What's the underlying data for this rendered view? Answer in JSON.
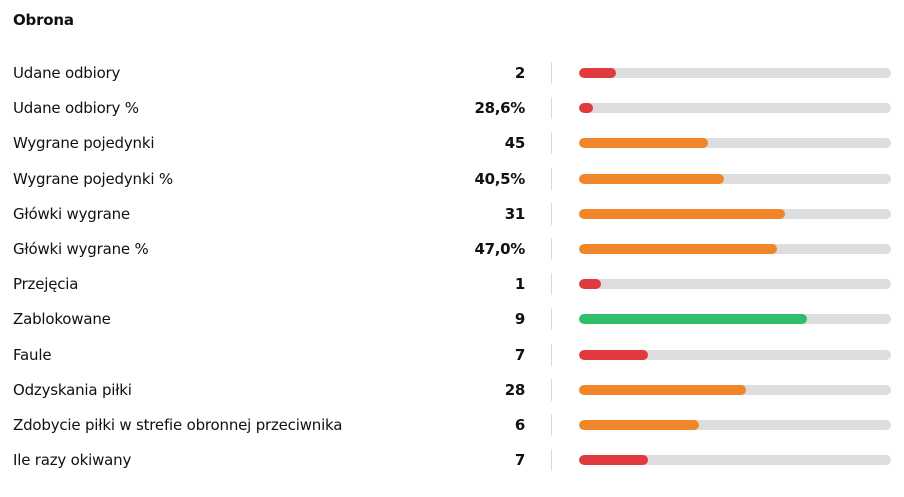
{
  "section": {
    "title": "Obrona"
  },
  "colors": {
    "red": "#e03a3e",
    "orange": "#f0852a",
    "green": "#2fbf6a",
    "track": "#dddddd"
  },
  "stats": [
    {
      "label": "Udane odbiory",
      "value": "2",
      "fill": 0.12,
      "color": "red"
    },
    {
      "label": "Udane odbiory %",
      "value": "28,6%",
      "fill": 0.045,
      "color": "red"
    },
    {
      "label": "Wygrane pojedynki",
      "value": "45",
      "fill": 0.415,
      "color": "orange"
    },
    {
      "label": "Wygrane pojedynki %",
      "value": "40,5%",
      "fill": 0.465,
      "color": "orange"
    },
    {
      "label": "Główki wygrane",
      "value": "31",
      "fill": 0.66,
      "color": "orange"
    },
    {
      "label": "Główki wygrane %",
      "value": "47,0%",
      "fill": 0.635,
      "color": "orange"
    },
    {
      "label": "Przejęcia",
      "value": "1",
      "fill": 0.07,
      "color": "red"
    },
    {
      "label": "Zablokowane",
      "value": "9",
      "fill": 0.73,
      "color": "green"
    },
    {
      "label": "Faule",
      "value": "7",
      "fill": 0.22,
      "color": "red"
    },
    {
      "label": "Odzyskania piłki",
      "value": "28",
      "fill": 0.535,
      "color": "orange"
    },
    {
      "label": "Zdobycie piłki w strefie obronnej przeciwnika",
      "value": "6",
      "fill": 0.385,
      "color": "orange"
    },
    {
      "label": "Ile razy okiwany",
      "value": "7",
      "fill": 0.22,
      "color": "red"
    }
  ]
}
